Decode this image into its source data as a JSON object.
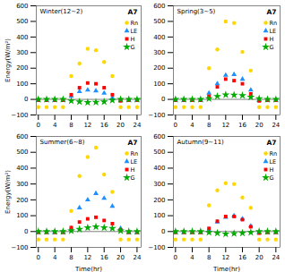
{
  "chart_data": [
    {
      "type": "scatter",
      "title": "Winter(12~2)",
      "annotations": [
        "A7"
      ],
      "ylabel": "Energy(W/m²)",
      "x": [
        0,
        2,
        4,
        6,
        8,
        10,
        12,
        14,
        16,
        18,
        20,
        22,
        24
      ],
      "series": [
        {
          "name": "Rn",
          "color": "#FFD700",
          "marker": "circle",
          "values": [
            -50,
            -50,
            -50,
            -50,
            150,
            230,
            325,
            315,
            240,
            150,
            -50,
            -50,
            -50
          ]
        },
        {
          "name": "LE",
          "color": "#1E90FF",
          "marker": "triangle",
          "values": [
            -5,
            -5,
            -5,
            -5,
            20,
            50,
            60,
            55,
            40,
            10,
            -5,
            -5,
            -5
          ]
        },
        {
          "name": "H",
          "color": "#FF0000",
          "marker": "square",
          "values": [
            -5,
            -5,
            -5,
            -5,
            30,
            75,
            105,
            100,
            75,
            30,
            -10,
            -5,
            -5
          ]
        },
        {
          "name": "G",
          "color": "#00AA00",
          "marker": "star",
          "values": [
            0,
            0,
            0,
            0,
            -10,
            -15,
            -20,
            -18,
            -15,
            -5,
            0,
            0,
            0
          ]
        }
      ],
      "xlim": [
        -0.5,
        25
      ],
      "xticks": [
        0,
        4,
        8,
        12,
        16,
        20,
        24
      ],
      "ylim": [
        -100,
        600
      ],
      "yticks": [
        -100,
        0,
        100,
        200,
        300,
        400,
        500,
        600
      ],
      "hline": 0,
      "legend": "upper right",
      "grid": false
    },
    {
      "type": "scatter",
      "title": "Spring(3~5)",
      "annotations": [
        "A7"
      ],
      "x": [
        0,
        2,
        4,
        6,
        8,
        10,
        12,
        14,
        16,
        18,
        20,
        22,
        24
      ],
      "series": [
        {
          "name": "Rn",
          "color": "#FFD700",
          "marker": "circle",
          "values": [
            -50,
            -50,
            -50,
            -50,
            200,
            320,
            500,
            490,
            305,
            185,
            -50,
            -50,
            -50
          ]
        },
        {
          "name": "LE",
          "color": "#1E90FF",
          "marker": "triangle",
          "values": [
            -5,
            -5,
            -5,
            -5,
            40,
            100,
            155,
            160,
            130,
            60,
            -5,
            -5,
            -5
          ]
        },
        {
          "name": "H",
          "color": "#FF0000",
          "marker": "square",
          "values": [
            -5,
            -5,
            -5,
            -5,
            20,
            80,
            130,
            120,
            100,
            35,
            -10,
            -5,
            -5
          ]
        },
        {
          "name": "G",
          "color": "#00AA00",
          "marker": "star",
          "values": [
            0,
            0,
            0,
            0,
            5,
            20,
            30,
            28,
            25,
            15,
            5,
            0,
            0
          ]
        }
      ],
      "xlim": [
        -0.5,
        25
      ],
      "xticks": [
        0,
        4,
        8,
        12,
        16,
        20,
        24
      ],
      "ylim": [
        -100,
        600
      ],
      "yticks": [
        -100,
        0,
        100,
        200,
        300,
        400,
        500,
        600
      ],
      "hline": 0,
      "legend": "upper right",
      "grid": false
    },
    {
      "type": "scatter",
      "title": "Summer(6~8)",
      "annotations": [
        "A7"
      ],
      "ylabel": "Energy(W/m²)",
      "xlabel": "Time(hr)",
      "x": [
        0,
        2,
        4,
        6,
        8,
        10,
        12,
        14,
        16,
        18,
        20,
        22,
        24
      ],
      "series": [
        {
          "name": "Rn",
          "color": "#FFD700",
          "marker": "circle",
          "values": [
            -50,
            -50,
            -50,
            -50,
            130,
            350,
            470,
            530,
            360,
            250,
            -50,
            -50,
            -50
          ]
        },
        {
          "name": "LE",
          "color": "#1E90FF",
          "marker": "triangle",
          "values": [
            -5,
            -5,
            -5,
            -5,
            20,
            150,
            200,
            240,
            210,
            160,
            20,
            -5,
            -5
          ]
        },
        {
          "name": "H",
          "color": "#FF0000",
          "marker": "square",
          "values": [
            -5,
            -5,
            -5,
            -5,
            25,
            60,
            80,
            90,
            70,
            50,
            10,
            -5,
            -5
          ]
        },
        {
          "name": "G",
          "color": "#00AA00",
          "marker": "star",
          "values": [
            0,
            0,
            0,
            0,
            5,
            15,
            25,
            30,
            25,
            20,
            5,
            0,
            0
          ]
        }
      ],
      "xlim": [
        -0.5,
        25
      ],
      "xticks": [
        0,
        4,
        8,
        12,
        16,
        20,
        24
      ],
      "ylim": [
        -100,
        600
      ],
      "yticks": [
        -100,
        0,
        100,
        200,
        300,
        400,
        500,
        600
      ],
      "hline": 0,
      "legend": "upper right",
      "grid": false
    },
    {
      "type": "scatter",
      "title": "Autumn(9~11)",
      "annotations": [
        "A7"
      ],
      "xlabel": "Time(hr)",
      "x": [
        0,
        2,
        4,
        6,
        8,
        10,
        12,
        14,
        16,
        18,
        20,
        22,
        24
      ],
      "series": [
        {
          "name": "Rn",
          "color": "#FFD700",
          "marker": "circle",
          "values": [
            -50,
            -50,
            -50,
            -50,
            165,
            260,
            305,
            300,
            215,
            150,
            -50,
            -50,
            -50
          ]
        },
        {
          "name": "LE",
          "color": "#1E90FF",
          "marker": "triangle",
          "values": [
            -5,
            -5,
            -5,
            -5,
            10,
            60,
            90,
            100,
            80,
            35,
            -5,
            -5,
            -5
          ]
        },
        {
          "name": "H",
          "color": "#FF0000",
          "marker": "square",
          "values": [
            -5,
            -5,
            -5,
            -5,
            20,
            65,
            95,
            95,
            75,
            30,
            -10,
            -5,
            -5
          ]
        },
        {
          "name": "G",
          "color": "#00AA00",
          "marker": "star",
          "values": [
            0,
            0,
            0,
            0,
            -5,
            -10,
            -15,
            -12,
            -10,
            -5,
            0,
            0,
            0
          ]
        }
      ],
      "xlim": [
        -0.5,
        25
      ],
      "xticks": [
        0,
        4,
        8,
        12,
        16,
        20,
        24
      ],
      "ylim": [
        -100,
        600
      ],
      "yticks": [
        -100,
        0,
        100,
        200,
        300,
        400,
        500,
        600
      ],
      "hline": 0,
      "legend": "upper right",
      "grid": false
    }
  ]
}
